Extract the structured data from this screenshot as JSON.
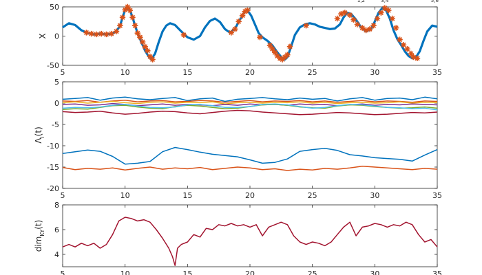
{
  "chart_data": [
    {
      "type": "line",
      "ylabel": "X",
      "xlim": [
        5,
        35
      ],
      "ylim": [
        -50,
        50
      ],
      "xticks": [
        "5",
        "10",
        "15",
        "20",
        "25",
        "30",
        "35"
      ],
      "yticks": [
        "-50",
        "0",
        "50"
      ],
      "top_labels": [
        "1,2",
        "3,4",
        "5,6"
      ],
      "series": [
        {
          "color": "#0072BD",
          "x": [
            5,
            5.5,
            6,
            6.5,
            7,
            7.5,
            8,
            8.5,
            9,
            9.3,
            9.6,
            9.8,
            10.0,
            10.2,
            10.4,
            10.6,
            10.8,
            11.0,
            11.3,
            11.6,
            11.9,
            12.1,
            12.4,
            12.7,
            13.0,
            13.3,
            13.6,
            14.0,
            14.5,
            15.0,
            15.5,
            16.0,
            16.4,
            16.8,
            17.2,
            17.6,
            18.0,
            18.4,
            18.8,
            19.1,
            19.4,
            19.6,
            19.8,
            20.1,
            20.4,
            20.7,
            21.0,
            21.4,
            21.8,
            22.2,
            22.6,
            22.8,
            23.0,
            23.3,
            23.6,
            24.0,
            24.4,
            24.8,
            25.2,
            25.6,
            26.0,
            26.4,
            26.8,
            27.2,
            27.5,
            27.8,
            28.1,
            28.5,
            28.9,
            29.3,
            29.7,
            30.0,
            30.3,
            30.6,
            30.9,
            31.2,
            31.5,
            31.8,
            32.1,
            32.4,
            32.7,
            33.0,
            33.3,
            33.6,
            33.9,
            34.2,
            34.6,
            35.0
          ],
          "values": [
            15,
            22,
            19,
            10,
            5,
            3,
            4,
            3,
            4,
            8,
            18,
            32,
            45,
            50,
            44,
            32,
            18,
            5,
            -10,
            -25,
            -35,
            -40,
            -30,
            -10,
            8,
            18,
            22,
            19,
            8,
            -2,
            -6,
            0,
            15,
            26,
            30,
            24,
            12,
            6,
            12,
            25,
            35,
            42,
            44,
            35,
            20,
            5,
            -2,
            -8,
            -16,
            -28,
            -38,
            -40,
            -36,
            -18,
            2,
            15,
            20,
            22,
            20,
            16,
            14,
            12,
            13,
            20,
            32,
            40,
            38,
            28,
            15,
            8,
            12,
            25,
            40,
            48,
            44,
            30,
            10,
            -5,
            -15,
            -26,
            -34,
            -38,
            -36,
            -26,
            -8,
            8,
            18,
            16
          ]
        },
        {
          "color": "#D95319",
          "marker": "*",
          "x": [
            6.9,
            7.3,
            7.7,
            8.1,
            8.5,
            8.9,
            9.3,
            9.6,
            9.8,
            10.0,
            10.2,
            10.4,
            10.6,
            10.8,
            11.0,
            11.2,
            11.4,
            11.6,
            11.8,
            12.0,
            12.2,
            14.7,
            18.5,
            18.8,
            19.1,
            19.4,
            19.6,
            19.8,
            20.8,
            21.6,
            21.8,
            22.0,
            22.2,
            22.4,
            22.6,
            22.8,
            23.0,
            23.2,
            24.5,
            27.0,
            27.3,
            27.6,
            28.0,
            28.3,
            28.6,
            29.0,
            29.3,
            29.6,
            29.9,
            30.2,
            30.5,
            30.8,
            31.1,
            31.4,
            31.7,
            32.0,
            32.3,
            32.6,
            32.9,
            33.1,
            33.4
          ],
          "values": [
            6,
            4,
            3,
            4,
            3,
            4,
            8,
            18,
            32,
            45,
            50,
            44,
            32,
            18,
            5,
            -2,
            -10,
            -18,
            -25,
            -35,
            -40,
            2,
            6,
            12,
            25,
            35,
            42,
            44,
            -2,
            -16,
            -22,
            -28,
            -34,
            -38,
            -40,
            -36,
            -32,
            -18,
            18,
            30,
            38,
            40,
            36,
            28,
            20,
            14,
            10,
            12,
            18,
            30,
            40,
            48,
            44,
            30,
            14,
            -6,
            -15,
            -22,
            -30,
            -36,
            -38
          ]
        }
      ]
    },
    {
      "type": "line",
      "ylabel_main": "Λ",
      "ylabel_sub": "i",
      "ylabel_tail": "(t)",
      "xlim": [
        5,
        35
      ],
      "ylim": [
        -20,
        5
      ],
      "xticks": [
        "5",
        "10",
        "15",
        "20",
        "25",
        "30",
        "35"
      ],
      "yticks": [
        "-20",
        "-15",
        "-10",
        "-5",
        "0",
        "5"
      ],
      "x": [
        5,
        6,
        7,
        8,
        9,
        10,
        11,
        12,
        13,
        14,
        15,
        16,
        17,
        18,
        19,
        20,
        21,
        22,
        23,
        24,
        25,
        26,
        27,
        28,
        29,
        30,
        31,
        32,
        33,
        34,
        35
      ],
      "series": [
        {
          "color": "#0072BD",
          "values": [
            0.9,
            1.1,
            1.3,
            0.7,
            1.2,
            1.4,
            1.0,
            0.8,
            1.1,
            1.3,
            0.6,
            1.0,
            1.2,
            0.4,
            0.9,
            1.1,
            1.3,
            1.0,
            0.8,
            1.2,
            0.9,
            1.1,
            0.5,
            1.0,
            1.3,
            0.7,
            1.1,
            1.2,
            0.8,
            1.4,
            1.0
          ]
        },
        {
          "color": "#D95319",
          "values": [
            0.5,
            0.4,
            0.6,
            0.2,
            0.5,
            0.7,
            0.3,
            0.5,
            0.6,
            0.3,
            0.4,
            0.6,
            0.5,
            0.2,
            0.4,
            0.6,
            0.3,
            0.5,
            0.4,
            0.6,
            0.3,
            0.5,
            0.2,
            0.4,
            0.6,
            0.3,
            0.5,
            0.4,
            0.2,
            0.5,
            0.4
          ]
        },
        {
          "color": "#EDB120",
          "values": [
            0.1,
            0.3,
            0.0,
            0.2,
            0.4,
            0.1,
            -0.1,
            0.2,
            0.3,
            0.0,
            0.2,
            0.1,
            0.3,
            -0.2,
            0.1,
            0.2,
            0.0,
            0.2,
            0.1,
            0.3,
            0.0,
            0.2,
            -0.1,
            0.1,
            0.2,
            0.0,
            0.1,
            0.3,
            0.0,
            0.2,
            0.1
          ]
        },
        {
          "color": "#7E2F8E",
          "values": [
            -0.3,
            -0.2,
            -0.5,
            -0.4,
            -0.1,
            -0.3,
            -0.6,
            -0.4,
            -0.2,
            -0.5,
            -0.3,
            -0.4,
            -0.6,
            -0.3,
            -0.5,
            -0.2,
            -0.4,
            -0.3,
            -0.5,
            -0.2,
            -0.4,
            -0.3,
            -0.6,
            -0.4,
            -0.2,
            -0.5,
            -0.3,
            -0.4,
            -0.2,
            -0.3,
            -0.4
          ]
        },
        {
          "color": "#77AC30",
          "values": [
            -1.5,
            -1.3,
            -1.4,
            -1.0,
            -0.6,
            -0.5,
            -0.9,
            -1.2,
            -1.3,
            -0.8,
            -0.5,
            -0.7,
            -1.0,
            -1.3,
            -1.2,
            -0.8,
            -0.4,
            -0.3,
            -0.5,
            -0.9,
            -1.1,
            -1.2,
            -0.7,
            -0.4,
            -0.5,
            -0.8,
            -1.0,
            -1.2,
            -1.1,
            -0.9,
            -1.2
          ]
        },
        {
          "color": "#4DBEEE",
          "values": [
            -1.2,
            -1.0,
            -1.1,
            -0.9,
            -0.5,
            -0.3,
            -0.7,
            -1.0,
            -1.1,
            -0.9,
            -0.4,
            -0.3,
            -0.6,
            -1.0,
            -1.0,
            -0.8,
            -0.3,
            -0.2,
            -0.4,
            -0.8,
            -1.2,
            -1.0,
            -0.6,
            -0.3,
            -0.4,
            -0.7,
            -1.0,
            -1.1,
            -1.3,
            -1.2,
            -1.6
          ]
        },
        {
          "color": "#A2142F",
          "values": [
            -2.0,
            -2.2,
            -2.1,
            -1.9,
            -2.3,
            -2.6,
            -2.4,
            -2.1,
            -1.9,
            -2.0,
            -2.3,
            -2.5,
            -2.2,
            -1.9,
            -1.7,
            -1.8,
            -2.1,
            -2.3,
            -2.5,
            -2.7,
            -2.6,
            -2.4,
            -2.2,
            -2.3,
            -2.5,
            -2.7,
            -2.6,
            -2.4,
            -2.2,
            -2.3,
            -2.1
          ]
        },
        {
          "color": "#0072BD",
          "values": [
            -11.8,
            -11.4,
            -11.0,
            -11.3,
            -12.5,
            -14.3,
            -14.1,
            -13.7,
            -11.4,
            -10.4,
            -10.9,
            -11.5,
            -12.0,
            -12.3,
            -12.6,
            -13.3,
            -14.1,
            -13.9,
            -13.1,
            -11.3,
            -10.9,
            -10.6,
            -11.1,
            -12.1,
            -12.4,
            -12.8,
            -13.0,
            -13.2,
            -13.6,
            -12.2,
            -10.9
          ]
        },
        {
          "color": "#D95319",
          "values": [
            -15.1,
            -15.6,
            -15.3,
            -15.5,
            -15.2,
            -15.7,
            -15.3,
            -15.0,
            -15.5,
            -15.2,
            -15.4,
            -15.1,
            -15.6,
            -15.3,
            -15.0,
            -15.2,
            -15.6,
            -15.4,
            -15.8,
            -15.5,
            -15.7,
            -15.3,
            -15.5,
            -15.2,
            -14.8,
            -15.0,
            -15.2,
            -15.4,
            -15.6,
            -15.3,
            -15.5
          ]
        }
      ]
    },
    {
      "type": "line",
      "ylabel_main": "dim",
      "ylabel_sub": "KY",
      "ylabel_tail": "(t)",
      "xlim": [
        5,
        35
      ],
      "ylim": [
        3,
        8
      ],
      "xticks": [
        "5",
        "10",
        "15",
        "20",
        "25",
        "30",
        "35"
      ],
      "yticks": [
        "4",
        "6",
        "8"
      ],
      "series": [
        {
          "color": "#A2142F",
          "x": [
            5.0,
            5.5,
            6.0,
            6.5,
            7.0,
            7.5,
            8.0,
            8.5,
            9.0,
            9.5,
            10.0,
            10.5,
            11.0,
            11.5,
            12.0,
            12.5,
            13.0,
            13.5,
            13.8,
            14.0,
            14.2,
            14.5,
            15.0,
            15.5,
            16.0,
            16.5,
            17.0,
            17.5,
            18.0,
            18.5,
            19.0,
            19.5,
            20.0,
            20.5,
            21.0,
            21.5,
            22.0,
            22.5,
            23.0,
            23.5,
            24.0,
            24.5,
            25.0,
            25.5,
            26.0,
            26.5,
            27.0,
            27.5,
            28.0,
            28.5,
            29.0,
            29.5,
            30.0,
            30.5,
            31.0,
            31.5,
            32.0,
            32.5,
            33.0,
            33.5,
            34.0,
            34.5,
            35.0
          ],
          "values": [
            4.6,
            4.8,
            4.6,
            4.9,
            4.7,
            4.9,
            4.5,
            4.8,
            5.6,
            6.7,
            7.0,
            6.9,
            6.7,
            6.8,
            6.6,
            6.0,
            5.3,
            4.5,
            3.8,
            3.1,
            4.5,
            4.8,
            5.0,
            5.6,
            5.4,
            6.1,
            6.0,
            6.4,
            6.3,
            6.5,
            6.3,
            6.4,
            6.2,
            6.4,
            5.5,
            6.2,
            6.4,
            6.6,
            6.4,
            5.5,
            5.0,
            4.8,
            5.0,
            4.9,
            4.7,
            5.0,
            5.6,
            6.2,
            6.6,
            5.5,
            6.2,
            6.3,
            6.5,
            6.4,
            6.2,
            6.4,
            6.3,
            6.6,
            6.4,
            5.6,
            5.0,
            5.2,
            4.6
          ]
        }
      ]
    }
  ]
}
